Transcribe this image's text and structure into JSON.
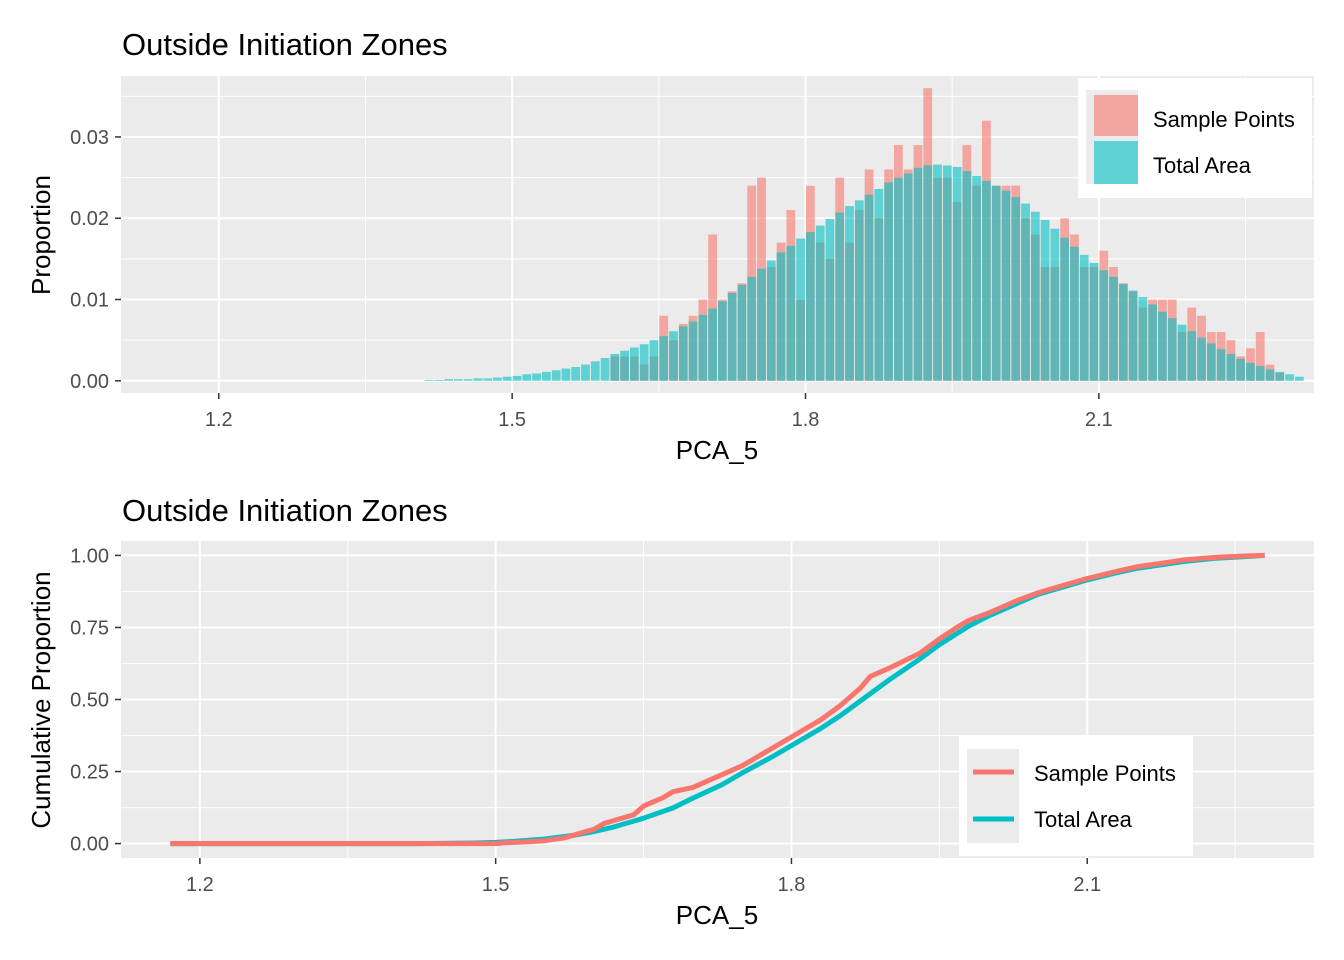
{
  "colors": {
    "sample": "#F8766D",
    "total": "#00BFC4",
    "panel": "#EBEBEB",
    "grid": "#FFFFFF"
  },
  "chart_data": [
    {
      "type": "bar",
      "title": "Outside Initiation Zones",
      "xlabel": "PCA_5",
      "ylabel": "Proportion",
      "xlim": [
        1.1,
        2.32
      ],
      "ylim": [
        -0.0015,
        0.0375
      ],
      "x_ticks": [
        "1.2",
        "1.5",
        "1.8",
        "2.1"
      ],
      "y_ticks": [
        "0.00",
        "0.01",
        "0.02",
        "0.03"
      ],
      "legend": [
        "Sample Points",
        "Total Area"
      ],
      "legend_position": "top-right",
      "bin_width": 0.01,
      "bin_start": 1.41,
      "series": [
        {
          "name": "Sample Points",
          "values": [
            0,
            0,
            0,
            0,
            0,
            0,
            0,
            0,
            0,
            0,
            0,
            0,
            0,
            0,
            0,
            0,
            0,
            0,
            0,
            0.003,
            0.003,
            0.003,
            0.002,
            0.003,
            0.008,
            0.005,
            0.007,
            0.008,
            0.01,
            0.018,
            0.01,
            0.011,
            0.012,
            0.024,
            0.025,
            0.014,
            0.017,
            0.021,
            0.01,
            0.024,
            0.017,
            0.015,
            0.025,
            0.017,
            0.021,
            0.026,
            0.02,
            0.026,
            0.029,
            0.026,
            0.029,
            0.036,
            0.025,
            0.025,
            0.022,
            0.029,
            0.024,
            0.032,
            0.024,
            0.024,
            0.024,
            0.02,
            0.018,
            0.014,
            0.014,
            0.02,
            0.018,
            0.014,
            0.014,
            0.016,
            0.014,
            0.012,
            0.011,
            0.009,
            0.01,
            0.01,
            0.01,
            0.006,
            0.009,
            0.008,
            0.006,
            0.006,
            0.005,
            0.003,
            0.004,
            0.006,
            0.002,
            0.001,
            0.0,
            0.0
          ]
        },
        {
          "name": "Total Area",
          "values": [
            0.0001,
            0.0001,
            0.0002,
            0.0002,
            0.0002,
            0.0003,
            0.0003,
            0.0004,
            0.0005,
            0.0006,
            0.0008,
            0.0009,
            0.0011,
            0.0013,
            0.0015,
            0.0017,
            0.002,
            0.0024,
            0.0028,
            0.0033,
            0.0037,
            0.0041,
            0.0045,
            0.005,
            0.0055,
            0.0061,
            0.0067,
            0.0073,
            0.0081,
            0.0089,
            0.0098,
            0.0108,
            0.0118,
            0.0128,
            0.0138,
            0.0148,
            0.0158,
            0.0166,
            0.0175,
            0.0183,
            0.0191,
            0.0199,
            0.0207,
            0.0215,
            0.0222,
            0.0229,
            0.0236,
            0.0244,
            0.025,
            0.0255,
            0.0262,
            0.0265,
            0.0266,
            0.0265,
            0.0263,
            0.0258,
            0.0252,
            0.0246,
            0.024,
            0.0234,
            0.0226,
            0.0218,
            0.0208,
            0.0198,
            0.0187,
            0.0176,
            0.0165,
            0.0155,
            0.0145,
            0.0136,
            0.0128,
            0.0119,
            0.0111,
            0.0103,
            0.0094,
            0.0085,
            0.0077,
            0.0069,
            0.0061,
            0.0053,
            0.0046,
            0.0039,
            0.0033,
            0.0027,
            0.0022,
            0.0018,
            0.0014,
            0.0011,
            0.0008,
            0.0005
          ]
        }
      ]
    },
    {
      "type": "line",
      "title": "Outside Initiation Zones",
      "xlabel": "PCA_5",
      "ylabel": "Cumulative Proportion",
      "xlim": [
        1.12,
        2.33
      ],
      "ylim": [
        -0.05,
        1.05
      ],
      "x_ticks": [
        "1.2",
        "1.5",
        "1.8",
        "2.1"
      ],
      "y_ticks": [
        "0.00",
        "0.25",
        "0.50",
        "0.75",
        "1.00"
      ],
      "legend": [
        "Sample Points",
        "Total Area"
      ],
      "legend_position": "bottom-right",
      "series": [
        {
          "name": "Total Area",
          "x": [
            1.17,
            1.3,
            1.42,
            1.48,
            1.5,
            1.52,
            1.55,
            1.58,
            1.6,
            1.62,
            1.65,
            1.68,
            1.7,
            1.73,
            1.75,
            1.78,
            1.8,
            1.83,
            1.85,
            1.88,
            1.9,
            1.93,
            1.95,
            1.98,
            2.0,
            2.03,
            2.05,
            2.08,
            2.1,
            2.13,
            2.15,
            2.18,
            2.2,
            2.23,
            2.26,
            2.28
          ],
          "y": [
            0.0,
            0.0,
            0.0,
            0.002,
            0.004,
            0.008,
            0.016,
            0.029,
            0.042,
            0.058,
            0.088,
            0.124,
            0.158,
            0.205,
            0.245,
            0.3,
            0.34,
            0.4,
            0.445,
            0.52,
            0.57,
            0.64,
            0.69,
            0.755,
            0.79,
            0.835,
            0.865,
            0.895,
            0.915,
            0.94,
            0.955,
            0.97,
            0.98,
            0.99,
            0.996,
            1.0
          ]
        },
        {
          "name": "Sample Points",
          "x": [
            1.17,
            1.3,
            1.42,
            1.49,
            1.5,
            1.51,
            1.53,
            1.55,
            1.57,
            1.58,
            1.6,
            1.61,
            1.62,
            1.64,
            1.65,
            1.67,
            1.68,
            1.7,
            1.73,
            1.75,
            1.78,
            1.8,
            1.83,
            1.85,
            1.87,
            1.88,
            1.9,
            1.93,
            1.95,
            1.97,
            1.98,
            2.0,
            2.03,
            2.05,
            2.08,
            2.1,
            2.13,
            2.15,
            2.18,
            2.2,
            2.23,
            2.26,
            2.28
          ],
          "y": [
            0.0,
            0.0,
            0.0,
            0.0,
            0.0,
            0.003,
            0.006,
            0.01,
            0.02,
            0.03,
            0.05,
            0.07,
            0.08,
            0.1,
            0.13,
            0.16,
            0.18,
            0.195,
            0.24,
            0.27,
            0.33,
            0.37,
            0.43,
            0.48,
            0.54,
            0.58,
            0.61,
            0.66,
            0.71,
            0.755,
            0.775,
            0.8,
            0.845,
            0.87,
            0.9,
            0.92,
            0.945,
            0.96,
            0.975,
            0.985,
            0.993,
            0.998,
            1.0
          ]
        }
      ]
    }
  ]
}
